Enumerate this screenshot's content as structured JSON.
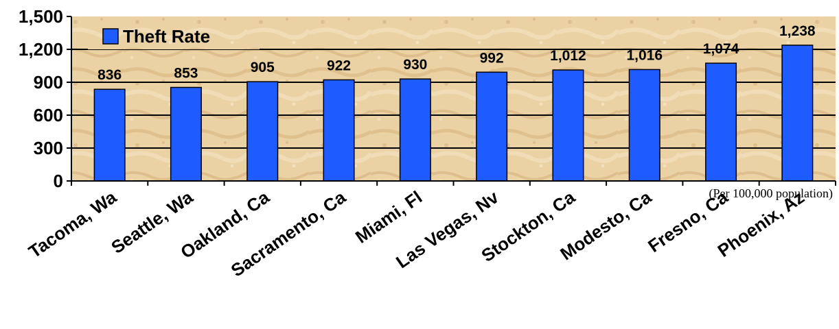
{
  "chart_data": {
    "type": "bar",
    "title": "",
    "xlabel": "",
    "ylabel": "",
    "categories": [
      "Tacoma, Wa",
      "Seattle, Wa",
      "Oakland, Ca",
      "Sacramento, Ca",
      "Miami, Fl",
      "Las Vegas, Nv",
      "Stockton, Ca",
      "Modesto, Ca",
      "Fresno, Ca",
      "Phoenix, Az"
    ],
    "series": [
      {
        "name": "Theft Rate",
        "values": [
          836,
          853,
          905,
          922,
          930,
          992,
          1012,
          1016,
          1074,
          1238
        ],
        "labels": [
          "836",
          "853",
          "905",
          "922",
          "930",
          "992",
          "1,012",
          "1,016",
          "1,074",
          "1,238"
        ],
        "color": "#1f5cff"
      }
    ],
    "ylim": [
      0,
      1500
    ],
    "yticks": [
      0,
      300,
      600,
      900,
      1200,
      1500
    ],
    "ytick_labels": [
      "0",
      "300",
      "600",
      "900",
      "1,200",
      "1,500"
    ],
    "grid": true,
    "legend_position": "top-left",
    "background": "parchment texture",
    "annotation": "Per 100,000 population"
  }
}
